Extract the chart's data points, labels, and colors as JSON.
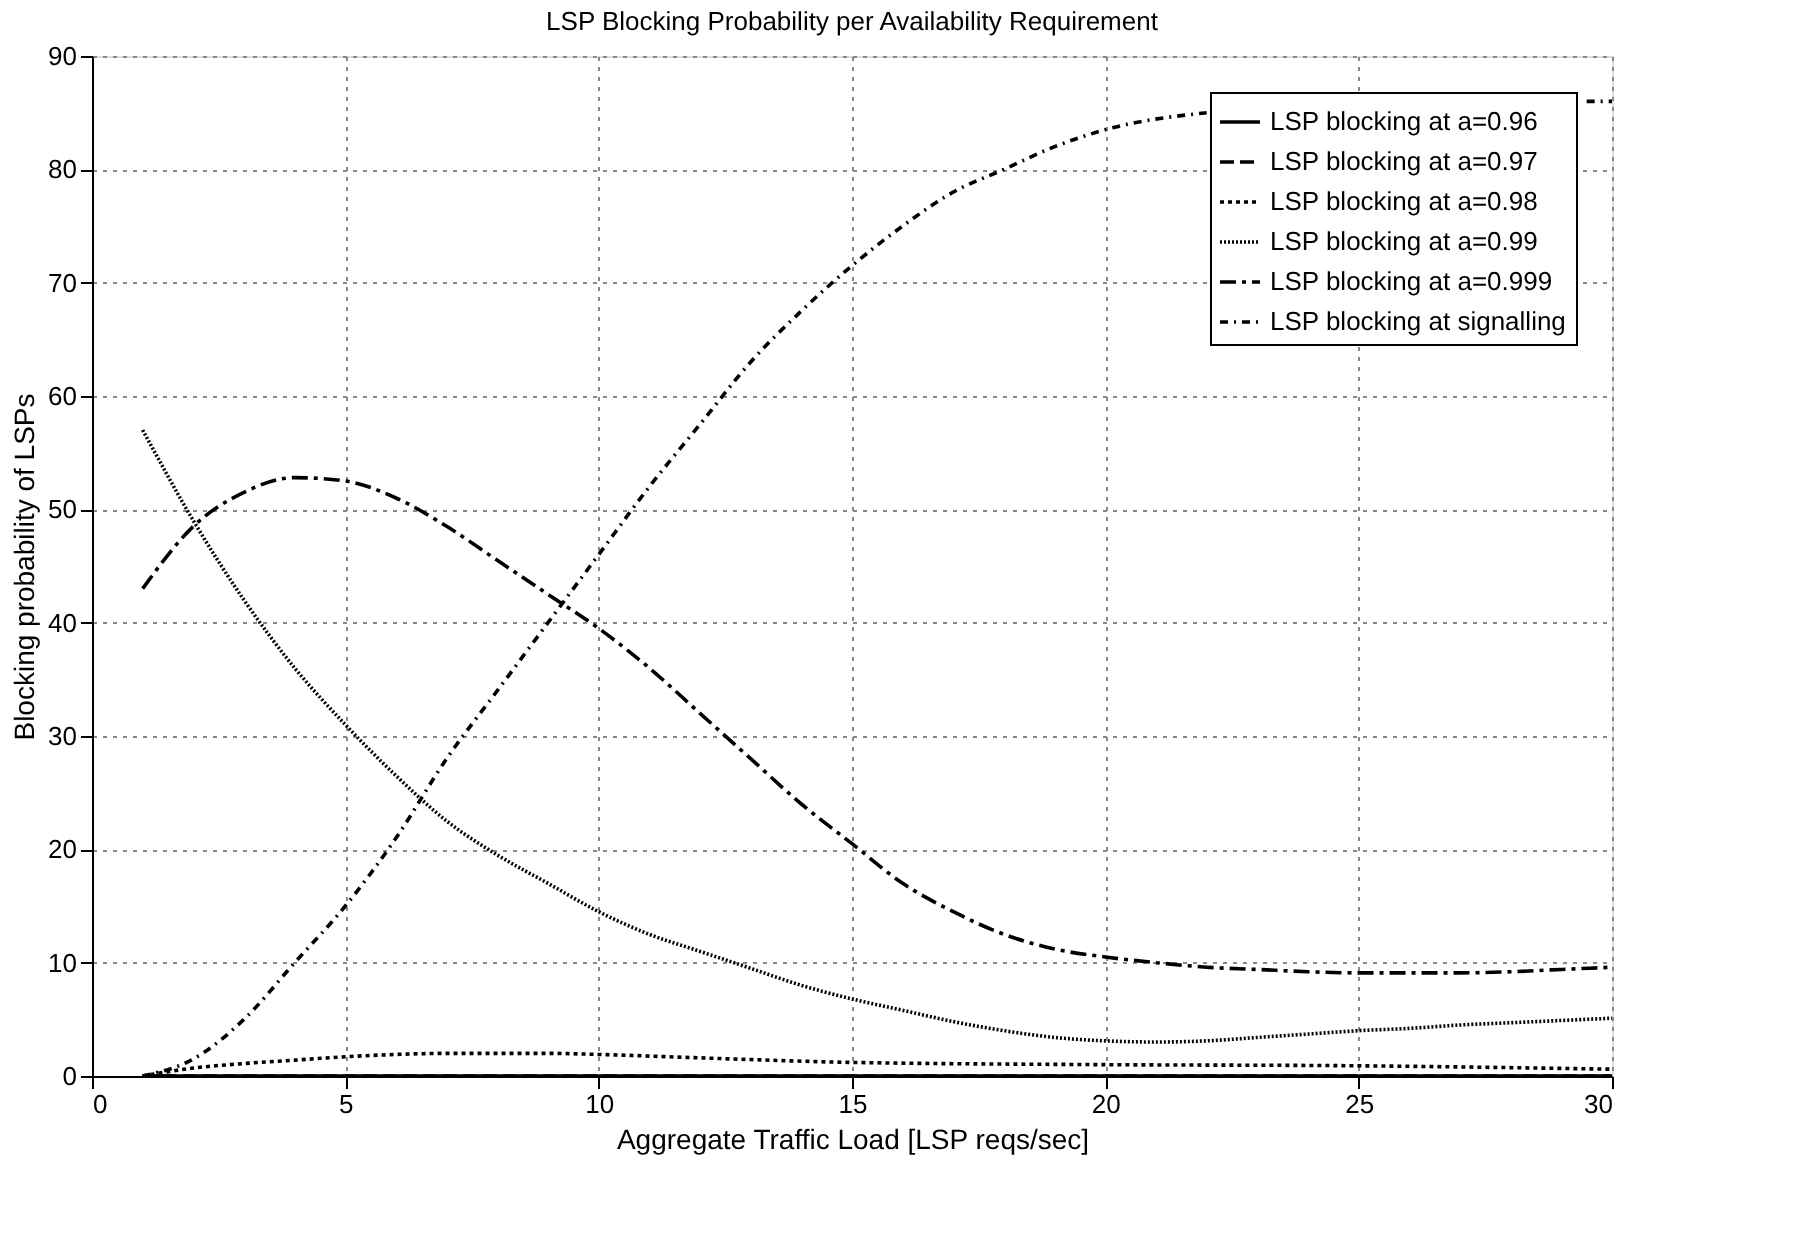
{
  "chart_data": {
    "type": "line",
    "title": "LSP Blocking Probability per Availability Requirement",
    "xlabel": "Aggregate Traffic Load [LSP reqs/sec]",
    "ylabel": "Blocking probability of LSPs",
    "xlim": [
      0,
      30
    ],
    "ylim": [
      0,
      90
    ],
    "xticks": [
      0,
      5,
      10,
      15,
      20,
      25,
      30
    ],
    "yticks": [
      0,
      10,
      20,
      30,
      40,
      50,
      60,
      70,
      80,
      90
    ],
    "grid": true,
    "legend": "top right",
    "marker": "none",
    "series": [
      {
        "name": "LSP blocking at a=0.96",
        "color": "#000000",
        "line_style": "solid",
        "x": [
          1,
          5,
          10,
          15,
          20,
          25,
          30
        ],
        "values": [
          0,
          0,
          0,
          0,
          0,
          0,
          0
        ]
      },
      {
        "name": "LSP blocking at a=0.97",
        "color": "#000000",
        "line_style": "dashed",
        "x": [
          1,
          5,
          10,
          15,
          20,
          25,
          30
        ],
        "values": [
          0,
          0,
          0,
          0,
          0,
          0,
          0
        ]
      },
      {
        "name": "LSP blocking at a=0.98",
        "color": "#000000",
        "line_style": "dotted",
        "x": [
          1,
          2,
          3,
          4,
          5,
          6,
          7,
          8,
          9,
          10,
          12,
          15,
          20,
          25,
          30
        ],
        "values": [
          0,
          0.7,
          1.1,
          1.4,
          1.7,
          1.9,
          2.0,
          2.0,
          2.0,
          1.9,
          1.6,
          1.2,
          1.0,
          0.9,
          0.6
        ]
      },
      {
        "name": "LSP blocking at a=0.99",
        "color": "#000000",
        "line_style": "dotted",
        "x": [
          1,
          2,
          3,
          4,
          5,
          6,
          7,
          8,
          9,
          10,
          11,
          12,
          13,
          14,
          15,
          16,
          17,
          18,
          19,
          20,
          21,
          22,
          23,
          24,
          25,
          26,
          27,
          28,
          29,
          30
        ],
        "values": [
          57,
          49,
          42,
          36,
          31,
          26.5,
          22.5,
          19.5,
          17,
          14.5,
          12.5,
          11,
          9.5,
          8,
          6.8,
          5.8,
          4.8,
          4,
          3.4,
          3.1,
          3,
          3.1,
          3.4,
          3.7,
          4,
          4.2,
          4.5,
          4.7,
          4.9,
          5.1
        ]
      },
      {
        "name": "LSP blocking at a=0.999",
        "color": "#000000",
        "line_style": "dashed",
        "x": [
          1,
          2,
          3,
          4,
          5,
          6,
          7,
          8,
          9,
          10,
          11,
          12,
          13,
          14,
          15,
          16,
          17,
          18,
          19,
          20,
          21,
          22,
          23,
          24,
          25,
          26,
          27,
          28,
          29,
          30
        ],
        "values": [
          43,
          48.5,
          51.5,
          52.8,
          52.5,
          51,
          48.5,
          45.5,
          42.5,
          39.5,
          36,
          32,
          28,
          24,
          20.5,
          17,
          14.5,
          12.5,
          11.2,
          10.5,
          10,
          9.6,
          9.4,
          9.2,
          9.1,
          9.1,
          9.1,
          9.2,
          9.4,
          9.6
        ]
      },
      {
        "name": "LSP blocking at signalling",
        "color": "#000000",
        "line_style": "dashed",
        "x": [
          1,
          2,
          3,
          4,
          5,
          6,
          7,
          8,
          9,
          10,
          11,
          12,
          13,
          14,
          15,
          16,
          17,
          18,
          19,
          20,
          22,
          25,
          29.5,
          30
        ],
        "values": [
          0,
          1.5,
          5,
          10,
          15,
          21,
          28,
          34,
          40,
          46,
          52,
          57.5,
          63,
          67.5,
          71.5,
          75,
          78,
          80,
          82,
          83.5,
          85,
          null,
          86,
          86
        ]
      }
    ]
  }
}
